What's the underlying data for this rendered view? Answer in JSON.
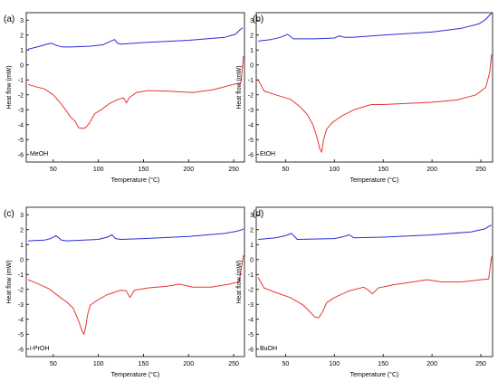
{
  "chart_data": [
    {
      "type": "line",
      "panel_label": "(a)",
      "annotation": "MeOH",
      "xlabel": "Temperature (°C)",
      "ylabel": "Heat flow (mW)",
      "xlim": [
        20,
        262
      ],
      "ylim": [
        -6.5,
        3.5
      ],
      "x_ticks": [
        50,
        100,
        150,
        200,
        250
      ],
      "y_ticks": [
        -6,
        -5,
        -4,
        -3,
        -2,
        -1,
        0,
        1,
        2,
        3
      ],
      "grid": false,
      "series": [
        {
          "color": "#2b2bd6",
          "x": [
            22,
            35,
            42,
            48,
            54,
            60,
            70,
            90,
            105,
            112,
            118,
            121,
            125,
            150,
            200,
            240,
            252,
            257,
            260
          ],
          "y": [
            1.05,
            1.25,
            1.38,
            1.45,
            1.3,
            1.2,
            1.2,
            1.25,
            1.35,
            1.55,
            1.7,
            1.45,
            1.4,
            1.5,
            1.65,
            1.85,
            2.05,
            2.35,
            2.5
          ]
        },
        {
          "color": "#e8362f",
          "x": [
            22,
            30,
            40,
            50,
            60,
            66,
            70,
            74,
            78,
            82,
            86,
            90,
            96,
            103,
            112,
            122,
            128,
            131,
            134,
            142,
            155,
            175,
            205,
            228,
            250,
            258,
            261
          ],
          "y": [
            -1.3,
            -1.45,
            -1.6,
            -2.0,
            -2.7,
            -3.2,
            -3.55,
            -3.75,
            -4.2,
            -4.25,
            -4.2,
            -3.9,
            -3.25,
            -3.0,
            -2.6,
            -2.3,
            -2.2,
            -2.55,
            -2.2,
            -1.85,
            -1.72,
            -1.75,
            -1.85,
            -1.65,
            -1.3,
            -1.2,
            0.6
          ]
        }
      ]
    },
    {
      "type": "line",
      "panel_label": "(b)",
      "annotation": "EtOH",
      "xlabel": "Temperature (°C)",
      "ylabel": "Heat flow (mW)",
      "xlim": [
        20,
        262
      ],
      "ylim": [
        -6.5,
        3.5
      ],
      "x_ticks": [
        50,
        100,
        150,
        200,
        250
      ],
      "y_ticks": [
        -6,
        -5,
        -4,
        -3,
        -2,
        -1,
        0,
        1,
        2,
        3
      ],
      "grid": false,
      "series": [
        {
          "color": "#2b2bd6",
          "x": [
            22,
            35,
            45,
            52,
            58,
            65,
            80,
            100,
            105,
            110,
            118,
            150,
            200,
            230,
            248,
            255,
            259,
            261
          ],
          "y": [
            1.6,
            1.7,
            1.85,
            2.05,
            1.75,
            1.75,
            1.75,
            1.8,
            1.95,
            1.85,
            1.85,
            2.0,
            2.2,
            2.45,
            2.75,
            3.05,
            3.35,
            3.45
          ]
        },
        {
          "color": "#e8362f",
          "x": [
            22,
            28,
            40,
            55,
            65,
            72,
            78,
            82,
            85,
            87,
            89,
            92,
            98,
            108,
            120,
            130,
            138,
            150,
            200,
            225,
            245,
            255,
            259,
            261
          ],
          "y": [
            -1.0,
            -1.75,
            -2.0,
            -2.3,
            -2.8,
            -3.3,
            -4.0,
            -4.8,
            -5.6,
            -5.85,
            -5.0,
            -4.3,
            -3.85,
            -3.4,
            -3.0,
            -2.8,
            -2.65,
            -2.65,
            -2.5,
            -2.35,
            -2.0,
            -1.5,
            -0.5,
            0.7
          ]
        }
      ]
    },
    {
      "type": "line",
      "panel_label": "(c)",
      "annotation": "i-PrOH",
      "xlabel": "Temperature (°C)",
      "ylabel": "Heat flow (mW)",
      "xlim": [
        20,
        262
      ],
      "ylim": [
        -6.5,
        3.5
      ],
      "x_ticks": [
        50,
        100,
        150,
        200,
        250
      ],
      "y_ticks": [
        -6,
        -5,
        -4,
        -3,
        -2,
        -1,
        0,
        1,
        2,
        3
      ],
      "grid": false,
      "series": [
        {
          "color": "#2b2bd6",
          "x": [
            22,
            40,
            47,
            53,
            59,
            65,
            100,
            110,
            115,
            119,
            125,
            150,
            200,
            240,
            254,
            259,
            261
          ],
          "y": [
            1.25,
            1.3,
            1.4,
            1.6,
            1.3,
            1.25,
            1.35,
            1.5,
            1.65,
            1.4,
            1.35,
            1.4,
            1.55,
            1.75,
            1.9,
            2.0,
            2.05
          ]
        },
        {
          "color": "#e8362f",
          "x": [
            22,
            30,
            45,
            58,
            65,
            72,
            78,
            82,
            84,
            86,
            88,
            91,
            98,
            110,
            125,
            131,
            135,
            140,
            155,
            175,
            190,
            205,
            225,
            245,
            256,
            261
          ],
          "y": [
            -1.35,
            -1.55,
            -1.95,
            -2.55,
            -2.85,
            -3.25,
            -4.1,
            -4.8,
            -5.0,
            -4.5,
            -3.7,
            -3.05,
            -2.75,
            -2.35,
            -2.05,
            -2.1,
            -2.55,
            -2.05,
            -1.9,
            -1.8,
            -1.65,
            -1.85,
            -1.85,
            -1.65,
            -1.5,
            0.3
          ]
        }
      ]
    },
    {
      "type": "line",
      "panel_label": "(d)",
      "annotation": "BuOH",
      "xlabel": "Temperature (°C)",
      "ylabel": "Heat flow (mW)",
      "xlim": [
        20,
        262
      ],
      "ylim": [
        -6.5,
        3.5
      ],
      "x_ticks": [
        50,
        100,
        150,
        200,
        250
      ],
      "y_ticks": [
        -6,
        -5,
        -4,
        -3,
        -2,
        -1,
        0,
        1,
        2,
        3
      ],
      "grid": false,
      "series": [
        {
          "color": "#2b2bd6",
          "x": [
            22,
            40,
            50,
            56,
            62,
            100,
            110,
            115,
            120,
            150,
            200,
            240,
            254,
            259,
            261
          ],
          "y": [
            1.35,
            1.45,
            1.6,
            1.75,
            1.35,
            1.4,
            1.55,
            1.65,
            1.45,
            1.5,
            1.65,
            1.85,
            2.05,
            2.25,
            2.3
          ]
        },
        {
          "color": "#e8362f",
          "x": [
            22,
            28,
            40,
            55,
            68,
            75,
            80,
            84,
            88,
            92,
            100,
            115,
            130,
            135,
            139,
            145,
            160,
            180,
            195,
            210,
            230,
            250,
            258,
            261
          ],
          "y": [
            -1.2,
            -1.9,
            -2.2,
            -2.55,
            -3.05,
            -3.5,
            -3.85,
            -3.9,
            -3.5,
            -2.9,
            -2.55,
            -2.1,
            -1.85,
            -2.05,
            -2.3,
            -1.9,
            -1.7,
            -1.5,
            -1.35,
            -1.5,
            -1.5,
            -1.35,
            -1.3,
            0.2
          ]
        }
      ]
    }
  ]
}
